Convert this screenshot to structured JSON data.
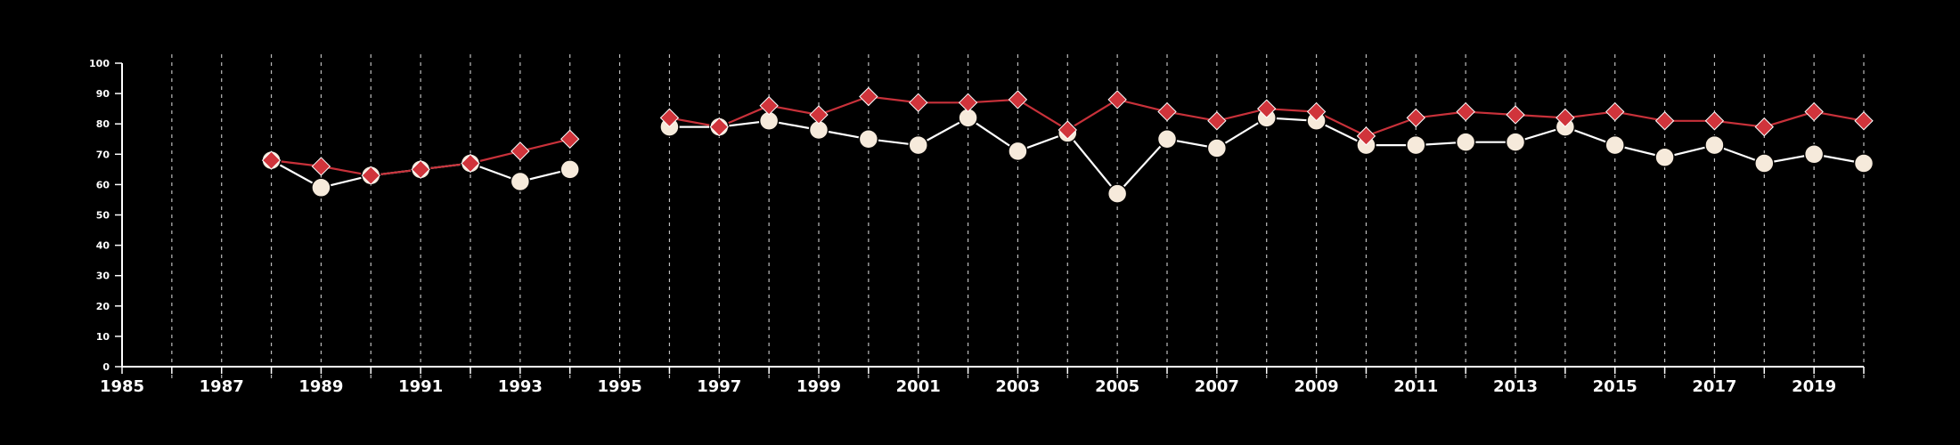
{
  "chart_data": {
    "type": "line",
    "title": "",
    "xlabel": "",
    "ylabel": "",
    "xlim": [
      1985,
      2020
    ],
    "ylim": [
      0,
      100
    ],
    "x_ticks": [
      1985,
      1987,
      1989,
      1991,
      1993,
      1995,
      1997,
      1999,
      2001,
      2003,
      2005,
      2007,
      2009,
      2011,
      2013,
      2015,
      2017,
      2019
    ],
    "y_ticks": [
      0,
      10,
      20,
      30,
      40,
      50,
      60,
      70,
      80,
      90,
      100
    ],
    "grid": "vertical dashed lines at each year",
    "legend": "none",
    "series": [
      {
        "marker": "circle",
        "color": "#ffffff",
        "marker_fill": "#f6eadb",
        "segments": [
          [
            [
              1988,
              68
            ],
            [
              1989,
              59
            ],
            [
              1990,
              63
            ],
            [
              1991,
              65
            ],
            [
              1992,
              67
            ],
            [
              1993,
              61
            ],
            [
              1994,
              65
            ]
          ],
          [
            [
              1996,
              79
            ],
            [
              1997,
              79
            ],
            [
              1998,
              81
            ],
            [
              1999,
              78
            ],
            [
              2000,
              75
            ],
            [
              2001,
              73
            ],
            [
              2002,
              82
            ],
            [
              2003,
              71
            ],
            [
              2004,
              77
            ],
            [
              2005,
              57
            ],
            [
              2006,
              75
            ],
            [
              2007,
              72
            ],
            [
              2008,
              82
            ],
            [
              2009,
              81
            ],
            [
              2010,
              73
            ],
            [
              2011,
              73
            ],
            [
              2012,
              74
            ],
            [
              2013,
              74
            ],
            [
              2014,
              79
            ],
            [
              2015,
              73
            ],
            [
              2016,
              69
            ],
            [
              2017,
              73
            ],
            [
              2018,
              67
            ],
            [
              2019,
              70
            ],
            [
              2020,
              67
            ]
          ]
        ]
      },
      {
        "marker": "diamond",
        "color": "#c8313a",
        "marker_fill": "#d0343b",
        "segments": [
          [
            [
              1988,
              68
            ],
            [
              1989,
              66
            ],
            [
              1990,
              63
            ],
            [
              1991,
              65
            ],
            [
              1992,
              67
            ],
            [
              1993,
              71
            ],
            [
              1994,
              75
            ]
          ],
          [
            [
              1996,
              82
            ],
            [
              1997,
              79
            ],
            [
              1998,
              86
            ],
            [
              1999,
              83
            ],
            [
              2000,
              89
            ],
            [
              2001,
              87
            ],
            [
              2002,
              87
            ],
            [
              2003,
              88
            ],
            [
              2004,
              78
            ],
            [
              2005,
              88
            ],
            [
              2006,
              84
            ],
            [
              2007,
              81
            ],
            [
              2008,
              85
            ],
            [
              2009,
              84
            ],
            [
              2010,
              76
            ],
            [
              2011,
              82
            ],
            [
              2012,
              84
            ],
            [
              2013,
              83
            ],
            [
              2014,
              82
            ],
            [
              2015,
              84
            ],
            [
              2016,
              81
            ],
            [
              2017,
              81
            ],
            [
              2018,
              79
            ],
            [
              2019,
              84
            ],
            [
              2020,
              81
            ]
          ]
        ]
      }
    ]
  }
}
